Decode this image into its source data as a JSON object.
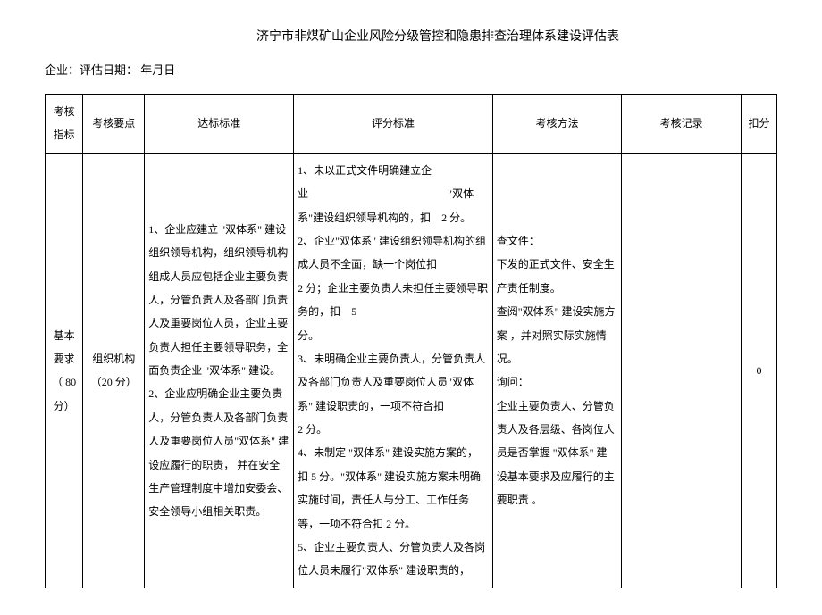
{
  "title": "济宁市非煤矿山企业风险分级管控和隐患排查治理体系建设评估表",
  "subtitle": "企业：评估日期： 年月日",
  "headers": {
    "indicator": "考核指标",
    "point": "考核要点",
    "standard": "达标标准",
    "scoring": "评分标准",
    "method": "考核方法",
    "record": "考核记录",
    "deduct": "扣分"
  },
  "row1": {
    "indicator": "基本要求（ 80分）",
    "point": "组织机构（20 分）",
    "standard": "1、企业应建立 \"双体系\" 建设组织领导机构，组织领导机构组成人员应包括企业主要负责人，分管负责人及各部门负责人及重要岗位人员，企业主要负责人担任主要领导职务，全面负责企业 \"双体系\" 建设。\n2、企业应明确企业主要负责人，分管负责人及各部门负责人及重要岗位人员\"双体系\" 建设应履行的职责， 并在安全生产管理制度中增加安委会、安全领导小组相关职责。",
    "scoring": "1、未以正式文件明确建立企业　　　　　　　　　　　　　\"双体系\"建设组织领导机构的，扣　2 分。\n2、企业\"双体系\" 建设组织领导机构的组成人员不全面，缺一个岗位扣　　　　　　　　　　　　2 分；企业主要负责人未担任主要领导职务的，扣　5\n分。\n3、未明确企业主要负责人，分管负责人及各部门负责人及重要岗位人员\"双体系\" 建设职责的，一项不符合扣　　　　　　　　　　2 分。\n4、未制定 \"双体系\" 建设实施方案的，扣 5 分。\"双体系\" 建设实施方案未明确实施时间，责任人与分工、工作任务等，一项不符合扣 2 分。\n5、企业主要负责人、分管负责人及各岗位人员未履行\"双体系\" 建设职责的，",
    "method": "查文件：\n下发的正式文件、安全生产责任制度。\n查阅\"双体系\" 建设实施方案 ，并对照实际实施情况。\n询问：\n企业主要负责人、分管负责人及各层级、各岗位人员是否掌握 \"双体系\" 建设基本要求及应履行的主要职责 。",
    "record": "",
    "deduct": "0"
  },
  "style": {
    "font_family": "SimSun",
    "font_size_body": 12,
    "font_size_title": 14,
    "text_color": "#000000",
    "background_color": "#ffffff",
    "border_color": "#000000",
    "line_height": 2.2
  }
}
